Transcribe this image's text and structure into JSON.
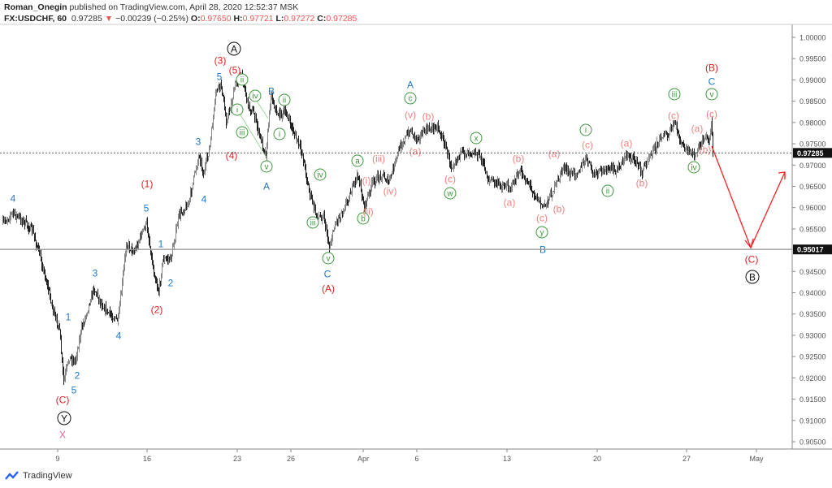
{
  "header": {
    "author": "Roman_Onegin",
    "published": "published on TradingView.com, April 28, 2020 12:52:37 MSK",
    "symbol": "FX:USDCHF, 60",
    "last": "0.97285",
    "change": "−0.00239 (−0.25%)",
    "o_label": "O:",
    "o": "0.97650",
    "h_label": "H:",
    "h": "0.97721",
    "l_label": "L:",
    "l": "0.97272",
    "c_label": "C:",
    "c": "0.97285",
    "down_icon": "triangle-down-icon"
  },
  "footer": {
    "brand": "TradingView",
    "logo_icon": "tradingview-logo"
  },
  "chart_data": {
    "type": "candlestick",
    "symbol": "USDCHF",
    "interval": "60",
    "ylim": [
      0.903,
      1.003
    ],
    "y_ticks": [
      "1.00000",
      "0.99500",
      "0.99000",
      "0.98500",
      "0.98000",
      "0.97500",
      "0.97000",
      "0.96500",
      "0.96000",
      "0.95500",
      "0.94500",
      "0.94000",
      "0.93500",
      "0.93000",
      "0.92500",
      "0.92000",
      "0.91500",
      "0.91000",
      "0.90500"
    ],
    "x_ticks": [
      "9",
      "16",
      "23",
      "26",
      "Apr",
      "6",
      "13",
      "20",
      "27",
      "May"
    ],
    "price_markers": [
      {
        "value": "0.97285",
        "line": "dotted"
      },
      {
        "value": "0.95017",
        "line": "solid"
      }
    ],
    "colors": {
      "candles": "#555555",
      "red_label": "#e02020",
      "blue_label": "#1e78c8",
      "pink_label": "#f08080",
      "green_label": "#3c963c",
      "projection": "#ff2020"
    },
    "swings": [
      [
        "Mar 6",
        0.9563
      ],
      [
        "Mar 9",
        0.919
      ],
      [
        "Mar 12",
        0.9325
      ],
      [
        "Mar 13",
        0.95
      ],
      [
        "Mar 17",
        0.939
      ],
      [
        "Mar 20",
        0.989
      ],
      [
        "Mar 23",
        0.991
      ],
      [
        "Mar 24",
        0.972
      ],
      [
        "Mar 24",
        0.985
      ],
      [
        "Mar 27",
        0.95
      ],
      [
        "Apr 6",
        0.98
      ],
      [
        "Apr 8",
        0.969
      ],
      [
        "Apr 15",
        0.9595
      ],
      [
        "Apr 20",
        0.973
      ],
      [
        "Apr 24",
        0.967
      ],
      [
        "Apr 27",
        0.98
      ],
      [
        "Apr 28",
        0.9728
      ]
    ],
    "projection": [
      [
        "Apr 28",
        0.9728
      ],
      [
        "Apr 29",
        0.9502
      ],
      [
        "Apr 30",
        0.968
      ]
    ],
    "annotations": [
      "4",
      "1",
      "2",
      "5",
      "(C)",
      "Y",
      "X",
      "3",
      "4",
      "5",
      "(1)",
      "1",
      "2",
      "(2)",
      "3",
      "4",
      "5",
      "(3)",
      "A",
      "(5)",
      "(4)",
      "ii",
      "iv",
      "i",
      "iii",
      "v",
      "B",
      "ii",
      "i",
      "A",
      "iv",
      "iii",
      "v",
      "C",
      "(A)",
      "a",
      "b",
      "(iii)",
      "(i)",
      "(ii)",
      "(iv)",
      "A",
      "c",
      "(v)",
      "(b)",
      "(a)",
      "x",
      "(c)",
      "w",
      "(b)",
      "(a)",
      "(a)",
      "(c)",
      "y",
      "B",
      "(b)",
      "i",
      "(c)",
      "(a)",
      "ii",
      "(b)",
      "iii",
      "(c)",
      "(a)",
      "(b)",
      "iv",
      "(B)",
      "C",
      "v",
      "(c)",
      "(C)",
      "B"
    ]
  }
}
